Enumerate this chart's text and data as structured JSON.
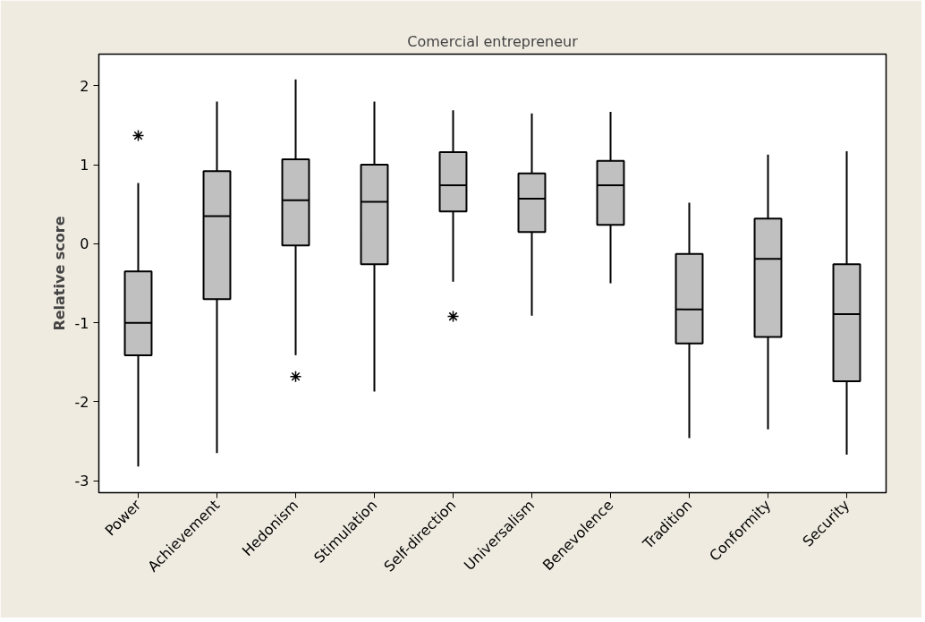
{
  "chart_data": {
    "type": "box",
    "title": "Comercial entrepreneur",
    "ylabel": "Relative score",
    "categories": [
      "Power",
      "Achievement",
      "Hedonism",
      "Stimulation",
      "Self-direction",
      "Universalism",
      "Benevolence",
      "Tradition",
      "Conformity",
      "Security"
    ],
    "boxes": [
      {
        "low": -2.82,
        "q1": -1.41,
        "median": -1.0,
        "q3": -0.35,
        "high": 0.77,
        "outliers": [
          1.37
        ]
      },
      {
        "low": -2.65,
        "q1": -0.7,
        "median": 0.35,
        "q3": 0.92,
        "high": 1.8
      },
      {
        "low": -1.41,
        "q1": -0.02,
        "median": 0.55,
        "q3": 1.07,
        "high": 2.08,
        "outliers": [
          -1.68
        ]
      },
      {
        "low": -1.87,
        "q1": -0.26,
        "median": 0.53,
        "q3": 1.0,
        "high": 1.8
      },
      {
        "low": -0.48,
        "q1": 0.41,
        "median": 0.74,
        "q3": 1.16,
        "high": 1.69,
        "outliers": [
          -0.92
        ]
      },
      {
        "low": -0.91,
        "q1": 0.15,
        "median": 0.57,
        "q3": 0.89,
        "high": 1.65
      },
      {
        "low": -0.5,
        "q1": 0.24,
        "median": 0.74,
        "q3": 1.05,
        "high": 1.67
      },
      {
        "low": -2.46,
        "q1": -1.26,
        "median": -0.83,
        "q3": -0.13,
        "high": 0.52
      },
      {
        "low": -2.35,
        "q1": -1.18,
        "median": -0.19,
        "q3": 0.32,
        "high": 1.13
      },
      {
        "low": -2.67,
        "q1": -1.74,
        "median": -0.89,
        "q3": -0.26,
        "high": 1.17
      }
    ],
    "color": "#c0c0c0",
    "ylim": [
      -3.15,
      2.4
    ],
    "yticks": [
      -3,
      -2,
      -1,
      0,
      1,
      2
    ],
    "grid": false
  }
}
